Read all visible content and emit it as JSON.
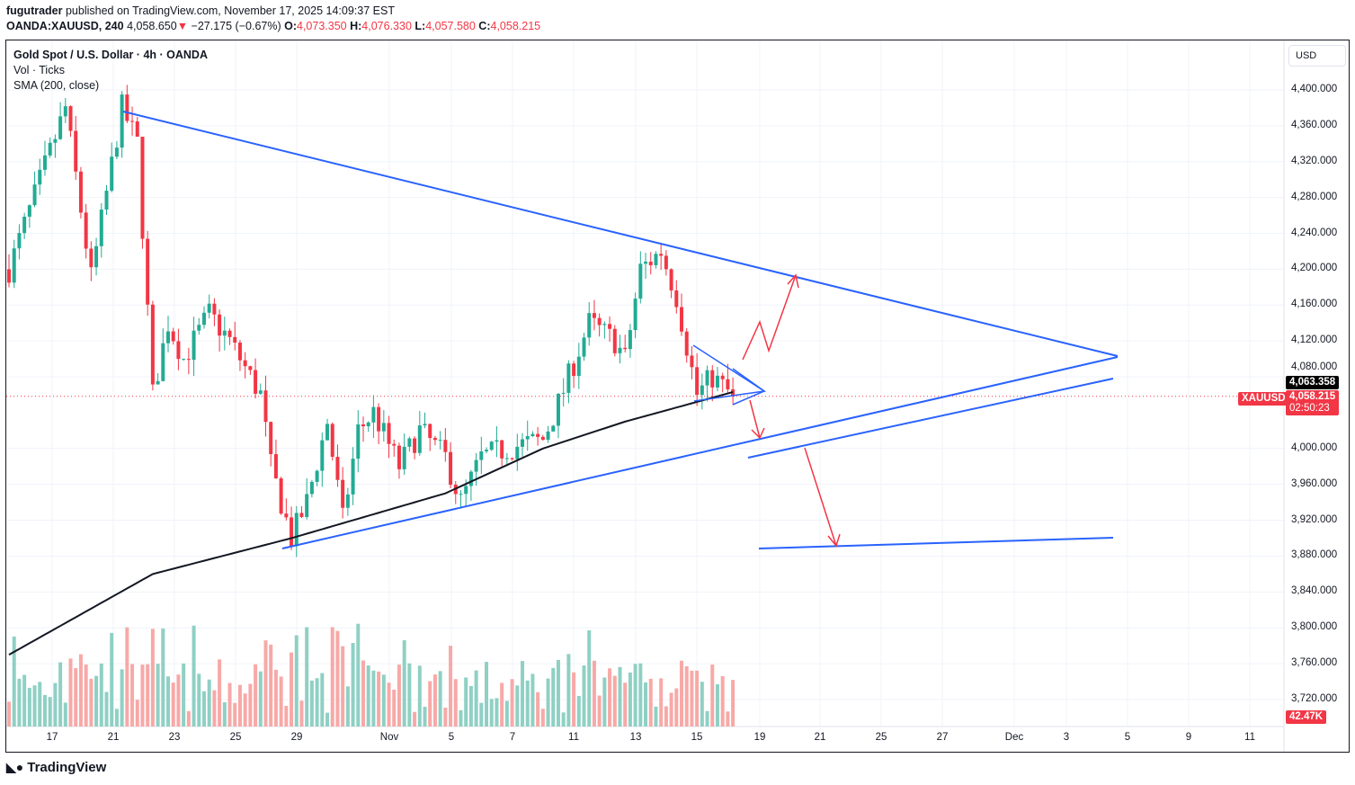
{
  "header": {
    "author": "fugutrader",
    "published": "published on TradingView.com, November 17, 2025 14:09:37 EST",
    "symbol": "OANDA:XAUUSD, 240",
    "last": "4,058.650",
    "change": "−27.175 (−0.67%)",
    "o_label": "O:",
    "o": "4,073.350",
    "h_label": "H:",
    "h": "4,076.330",
    "l_label": "L:",
    "l": "4,057.580",
    "c_label": "C:",
    "c": "4,058.215"
  },
  "legend": {
    "title": "Gold Spot / U.S. Dollar · 4h · OANDA",
    "vol": "Vol · Ticks",
    "sma": "SMA (200, close)"
  },
  "currency_button": "USD",
  "tags": {
    "sma_value": "4,063.358",
    "symbol": "XAUUSD",
    "price": "4,058.215",
    "countdown": "02:50:23",
    "volume": "42.47K"
  },
  "brand": "TradingView",
  "colors": {
    "up": "#22ab94",
    "down": "#f23645",
    "drawing": "#2962ff",
    "arrow": "#f23645",
    "sma": "#131722"
  },
  "chart_data": {
    "type": "candlestick",
    "y_ticks": [
      "4,400.000",
      "4,360.000",
      "4,320.000",
      "4,280.000",
      "4,240.000",
      "4,200.000",
      "4,160.000",
      "4,120.000",
      "4,080.000",
      "4,000.000",
      "3,960.000",
      "3,920.000",
      "3,880.000",
      "3,840.000",
      "3,800.000",
      "3,760.000",
      "3,720.000"
    ],
    "ylim": [
      3710,
      4450
    ],
    "x_ticks": [
      "17",
      "21",
      "23",
      "25",
      "29",
      "Nov",
      "5",
      "7",
      "11",
      "13",
      "15",
      "19",
      "21",
      "25",
      "27",
      "Dec",
      "3",
      "5",
      "9",
      "11"
    ],
    "candle_count": 142,
    "close_path": [
      [
        0,
        4200
      ],
      [
        11,
        4380
      ],
      [
        16,
        4190
      ],
      [
        22,
        4380
      ],
      [
        25,
        4340
      ],
      [
        28,
        4060
      ],
      [
        31,
        4140
      ],
      [
        34,
        4100
      ],
      [
        39,
        4150
      ],
      [
        43,
        4120
      ],
      [
        49,
        4060
      ],
      [
        51,
        3980
      ],
      [
        55,
        3900
      ],
      [
        58,
        3940
      ],
      [
        62,
        4030
      ],
      [
        65,
        3920
      ],
      [
        68,
        4020
      ],
      [
        71,
        4040
      ],
      [
        76,
        3980
      ],
      [
        80,
        4020
      ],
      [
        85,
        3990
      ],
      [
        88,
        3940
      ],
      [
        92,
        3990
      ],
      [
        97,
        4000
      ],
      [
        104,
        4010
      ],
      [
        107,
        4050
      ],
      [
        113,
        4140
      ],
      [
        118,
        4120
      ],
      [
        120,
        4100
      ],
      [
        123,
        4200
      ],
      [
        127,
        4220
      ],
      [
        130,
        4170
      ],
      [
        134,
        4060
      ],
      [
        137,
        4080
      ],
      [
        141,
        4058
      ]
    ],
    "sma_path": [
      [
        0,
        3770
      ],
      [
        28,
        3860
      ],
      [
        55,
        3900
      ],
      [
        85,
        3950
      ],
      [
        104,
        4000
      ],
      [
        120,
        4030
      ],
      [
        141,
        4063
      ]
    ]
  }
}
